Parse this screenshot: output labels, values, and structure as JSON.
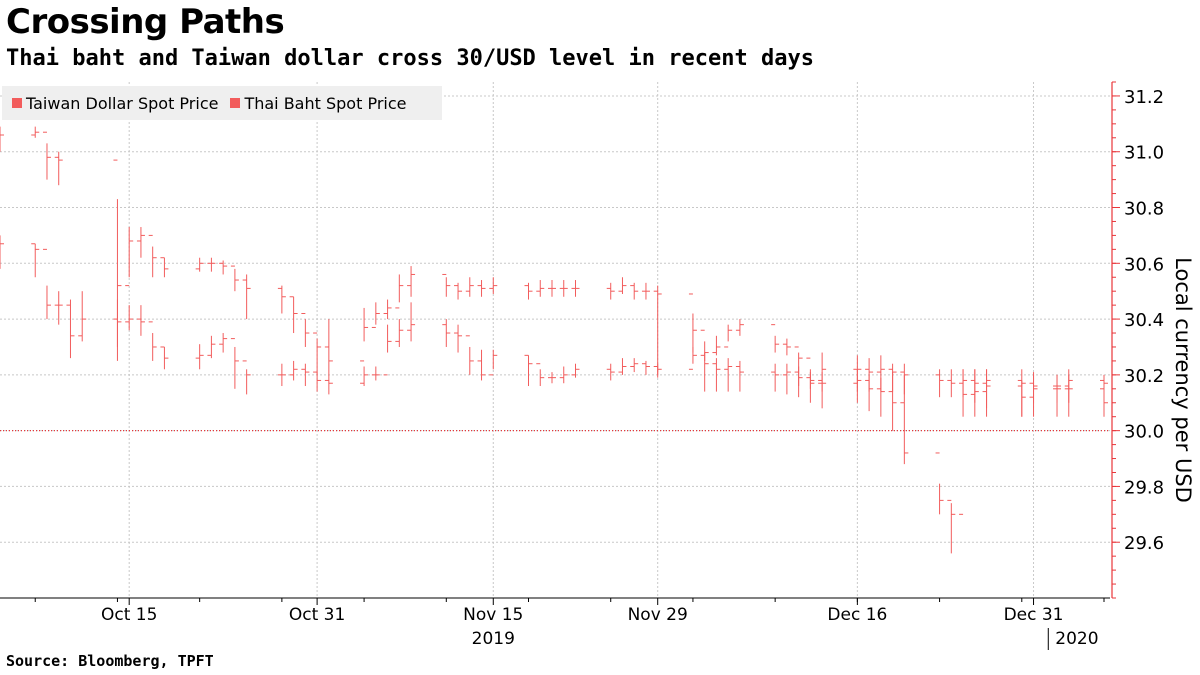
{
  "header": {
    "title": "Crossing Paths",
    "subtitle": "Thai baht and Taiwan dollar cross 30/USD level in recent days"
  },
  "footer": {
    "source": "Source: Bloomberg, TPFT"
  },
  "colors": {
    "series": "#f25c5c",
    "axis": "#e8363a",
    "grid": "#c8c8c8",
    "legend_bg": "#efefef",
    "reference_line": "#e8363a"
  },
  "chart_data": {
    "type": "line",
    "style": "ohlc-bars",
    "title": "Crossing Paths",
    "subtitle": "Thai baht and Taiwan dollar cross 30/USD level in recent days",
    "xlabel": "",
    "ylabel": "Local currency per USD",
    "ylim": [
      29.4,
      31.25
    ],
    "y_axis_side": "right",
    "yticks": [
      29.6,
      29.8,
      30.0,
      30.2,
      30.4,
      30.6,
      30.8,
      31.0,
      31.2
    ],
    "ytick_labels": [
      "29.6",
      "29.8",
      "30.0",
      "30.2",
      "30.4",
      "30.6",
      "30.8",
      "31.0",
      "31.2"
    ],
    "xlim": [
      "2019-10-04",
      "2020-01-06"
    ],
    "xticks": [
      {
        "date": "2019-10-15",
        "label": "Oct 15"
      },
      {
        "date": "2019-10-31",
        "label": "Oct 31"
      },
      {
        "date": "2019-11-15",
        "label": "Nov 15"
      },
      {
        "date": "2019-11-29",
        "label": "Nov 29"
      },
      {
        "date": "2019-12-16",
        "label": "Dec 16"
      },
      {
        "date": "2019-12-31",
        "label": "Dec 31"
      }
    ],
    "year_labels": [
      {
        "date": "2019-11-15",
        "label": "2019"
      },
      {
        "date": "2020-01-01",
        "label": "2020"
      }
    ],
    "reference_line": 30.0,
    "grid": true,
    "legend_position": "top-left",
    "series": [
      {
        "name": "Taiwan Dollar Spot Price",
        "x": [
          "2019-10-04",
          "2019-10-07",
          "2019-10-08",
          "2019-10-09",
          "2019-10-14",
          "2019-10-15",
          "2019-10-16",
          "2019-10-17",
          "2019-10-18",
          "2019-10-21",
          "2019-10-22",
          "2019-10-23",
          "2019-10-24",
          "2019-10-25",
          "2019-10-28",
          "2019-10-29",
          "2019-10-30",
          "2019-10-31",
          "2019-11-01",
          "2019-11-04",
          "2019-11-05",
          "2019-11-06",
          "2019-11-07",
          "2019-11-08",
          "2019-11-11",
          "2019-11-12",
          "2019-11-13",
          "2019-11-14",
          "2019-11-15",
          "2019-11-18",
          "2019-11-19",
          "2019-11-20",
          "2019-11-21",
          "2019-11-22",
          "2019-11-25",
          "2019-11-26",
          "2019-11-27",
          "2019-11-28",
          "2019-11-29",
          "2019-12-02",
          "2019-12-03",
          "2019-12-04",
          "2019-12-05",
          "2019-12-06",
          "2019-12-09",
          "2019-12-10",
          "2019-12-11",
          "2019-12-12",
          "2019-12-13",
          "2019-12-16",
          "2019-12-17",
          "2019-12-18",
          "2019-12-19",
          "2019-12-20",
          "2019-12-23",
          "2019-12-24",
          "2019-12-25",
          "2019-12-26",
          "2019-12-27",
          "2019-12-30",
          "2019-12-31",
          "2020-01-02",
          "2020-01-03",
          "2020-01-06"
        ],
        "values": [
          31.06,
          31.07,
          30.98,
          30.97,
          30.52,
          30.68,
          30.7,
          30.62,
          30.58,
          30.6,
          30.6,
          30.59,
          30.54,
          30.51,
          30.48,
          30.42,
          30.35,
          30.3,
          30.25,
          30.37,
          30.42,
          30.44,
          30.52,
          30.56,
          30.52,
          30.5,
          30.52,
          30.51,
          30.52,
          30.5,
          30.51,
          30.51,
          30.51,
          30.51,
          30.5,
          30.52,
          30.5,
          30.5,
          30.49,
          30.36,
          30.24,
          30.22,
          30.23,
          30.21,
          30.2,
          30.21,
          30.19,
          30.17,
          30.17,
          30.18,
          30.15,
          30.14,
          30.1,
          29.92,
          29.75,
          29.7,
          30.13,
          30.14,
          30.16,
          30.12,
          30.15,
          30.16,
          30.15,
          30.1
        ],
        "lows": [
          31.0,
          31.05,
          30.9,
          30.88,
          30.25,
          30.55,
          30.62,
          30.55,
          30.55,
          30.57,
          30.57,
          30.56,
          30.5,
          30.4,
          30.42,
          30.35,
          30.3,
          30.2,
          30.2,
          30.32,
          30.38,
          30.4,
          30.46,
          30.48,
          30.48,
          30.47,
          30.48,
          30.48,
          30.49,
          30.47,
          30.48,
          30.48,
          30.48,
          30.48,
          30.47,
          30.49,
          30.47,
          30.47,
          30.2,
          30.28,
          30.14,
          30.14,
          30.14,
          30.14,
          30.14,
          30.13,
          30.12,
          30.1,
          30.08,
          30.1,
          30.07,
          30.05,
          30.0,
          29.88,
          29.7,
          29.56,
          30.05,
          30.05,
          30.05,
          30.05,
          30.05,
          30.05,
          30.05,
          30.05
        ],
        "highs": [
          31.09,
          31.09,
          31.03,
          31.0,
          30.83,
          30.73,
          30.73,
          30.66,
          30.62,
          30.62,
          30.62,
          30.61,
          30.58,
          30.56,
          30.52,
          30.48,
          30.4,
          30.33,
          30.4,
          30.44,
          30.46,
          30.47,
          30.56,
          30.59,
          30.55,
          30.53,
          30.55,
          30.54,
          30.55,
          30.53,
          30.54,
          30.54,
          30.54,
          30.54,
          30.53,
          30.55,
          30.53,
          30.53,
          30.52,
          30.42,
          30.28,
          30.26,
          30.26,
          30.25,
          30.24,
          30.24,
          30.23,
          30.21,
          30.21,
          30.22,
          30.2,
          30.19,
          30.21,
          30.2,
          29.81,
          29.74,
          30.22,
          30.22,
          30.22,
          30.18,
          30.2,
          30.2,
          30.2,
          30.18
        ]
      },
      {
        "name": "Thai Baht Spot Price",
        "x": [
          "2019-10-04",
          "2019-10-07",
          "2019-10-08",
          "2019-10-09",
          "2019-10-10",
          "2019-10-11",
          "2019-10-14",
          "2019-10-15",
          "2019-10-16",
          "2019-10-17",
          "2019-10-18",
          "2019-10-21",
          "2019-10-22",
          "2019-10-23",
          "2019-10-24",
          "2019-10-25",
          "2019-10-28",
          "2019-10-29",
          "2019-10-30",
          "2019-10-31",
          "2019-11-01",
          "2019-11-04",
          "2019-11-05",
          "2019-11-06",
          "2019-11-07",
          "2019-11-08",
          "2019-11-11",
          "2019-11-12",
          "2019-11-13",
          "2019-11-14",
          "2019-11-15",
          "2019-11-18",
          "2019-11-19",
          "2019-11-20",
          "2019-11-21",
          "2019-11-22",
          "2019-11-25",
          "2019-11-26",
          "2019-11-27",
          "2019-11-28",
          "2019-11-29",
          "2019-12-02",
          "2019-12-03",
          "2019-12-04",
          "2019-12-05",
          "2019-12-06",
          "2019-12-09",
          "2019-12-10",
          "2019-12-11",
          "2019-12-12",
          "2019-12-13",
          "2019-12-16",
          "2019-12-17",
          "2019-12-18",
          "2019-12-19",
          "2019-12-20",
          "2019-12-23",
          "2019-12-24",
          "2019-12-25",
          "2019-12-26",
          "2019-12-27",
          "2019-12-30",
          "2019-12-31",
          "2020-01-02",
          "2020-01-03",
          "2020-01-06"
        ],
        "values": [
          30.67,
          30.65,
          30.45,
          30.45,
          30.34,
          30.4,
          30.39,
          30.4,
          30.39,
          30.3,
          30.26,
          30.27,
          30.31,
          30.33,
          30.25,
          30.2,
          30.2,
          30.22,
          30.21,
          30.18,
          30.17,
          30.2,
          30.2,
          30.32,
          30.36,
          30.38,
          30.35,
          30.34,
          30.25,
          30.2,
          30.27,
          30.24,
          30.19,
          30.19,
          30.2,
          30.22,
          30.21,
          30.23,
          30.24,
          30.23,
          30.22,
          30.27,
          30.28,
          30.3,
          30.36,
          30.38,
          30.31,
          30.3,
          30.26,
          30.18,
          30.22,
          30.22,
          30.21,
          30.22,
          30.21,
          30.2,
          30.18,
          30.17,
          30.18,
          30.17,
          30.18,
          30.17,
          30.16,
          30.15,
          30.18,
          30.17
        ],
        "lows": [
          30.58,
          30.55,
          30.4,
          30.38,
          30.26,
          30.32,
          30.3,
          30.36,
          30.34,
          30.25,
          30.22,
          30.22,
          30.26,
          30.28,
          30.15,
          30.13,
          30.16,
          30.18,
          30.16,
          30.14,
          30.13,
          30.16,
          30.18,
          30.28,
          30.3,
          30.32,
          30.3,
          30.28,
          30.2,
          30.18,
          30.22,
          30.16,
          30.16,
          30.17,
          30.17,
          30.19,
          30.18,
          30.2,
          30.21,
          30.2,
          30.19,
          30.24,
          30.25,
          30.27,
          30.32,
          30.34,
          30.28,
          30.27,
          30.16,
          30.15,
          30.14,
          30.14,
          30.14,
          30.14,
          30.14,
          30.13,
          30.12,
          30.12,
          30.12,
          30.1,
          30.08,
          30.05,
          30.1,
          30.1,
          30.1,
          30.08
        ],
        "highs": [
          30.7,
          30.67,
          30.52,
          30.5,
          30.47,
          30.5,
          30.47,
          30.45,
          30.45,
          30.35,
          30.3,
          30.31,
          30.34,
          30.35,
          30.3,
          30.22,
          30.24,
          30.25,
          30.24,
          30.21,
          30.2,
          30.23,
          30.23,
          30.38,
          30.4,
          30.46,
          30.4,
          30.38,
          30.3,
          30.29,
          30.29,
          30.27,
          30.22,
          30.21,
          30.23,
          30.24,
          30.24,
          30.26,
          30.26,
          30.25,
          30.24,
          30.3,
          30.32,
          30.34,
          30.38,
          30.4,
          30.34,
          30.33,
          30.28,
          30.22,
          30.28,
          30.27,
          30.26,
          30.27,
          30.24,
          30.24,
          30.22,
          30.22,
          30.22,
          30.22,
          30.22,
          30.22,
          30.21,
          30.2,
          30.22,
          30.2
        ]
      }
    ]
  }
}
